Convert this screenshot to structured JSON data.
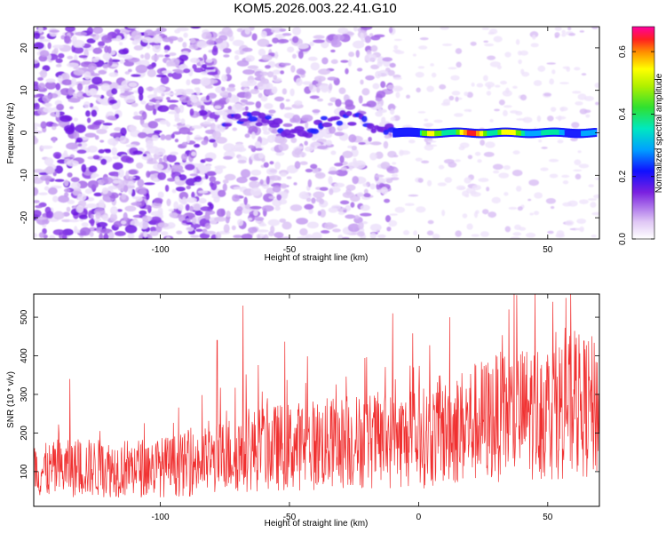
{
  "title": "KOM5.2026.003.22.41.G10",
  "colors": {
    "line": "#f03030",
    "frame": "#000000"
  },
  "chart_data": [
    {
      "type": "heatmap",
      "title": "KOM5.2026.003.22.41.G10",
      "xlabel": "Height of straight line (km)",
      "ylabel": "Frequency (Hz)",
      "xlim": [
        -149,
        70
      ],
      "ylim": [
        -25,
        25
      ],
      "xticks": [
        -100,
        -50,
        0,
        50
      ],
      "xtick_labels": [
        "-100",
        "-50",
        "0",
        "50"
      ],
      "yticks": [
        20,
        10,
        0,
        -10,
        -20
      ],
      "ytick_labels": [
        "20",
        "10",
        "0",
        "-10",
        "-20"
      ],
      "colorbar": {
        "label": "Normalized spectral amplitude",
        "range": [
          0.0,
          0.68
        ],
        "ticks": [
          0.0,
          0.2,
          0.4,
          0.6
        ],
        "tick_labels": [
          "0.0",
          "0.2",
          "0.4",
          "0.6"
        ]
      },
      "features": [
        {
          "name": "broadband-noise",
          "x_range": [
            -149,
            -78
          ],
          "freq_range": [
            -25,
            25
          ],
          "amplitude": 0.15
        },
        {
          "name": "scattered-noise",
          "x_range": [
            -78,
            -10
          ],
          "freq_range": [
            -25,
            25
          ],
          "amplitude": 0.1
        },
        {
          "name": "carrier-line",
          "x_range": [
            -10,
            68
          ],
          "freq": 0,
          "amplitude_peak": 0.68,
          "peak_x": 22
        }
      ]
    },
    {
      "type": "line",
      "xlabel": "Height of straight line (km)",
      "ylabel": "SNR (10 * v/v)",
      "xlim": [
        -149,
        70
      ],
      "ylim": [
        10,
        560
      ],
      "xticks": [
        -100,
        -50,
        0,
        50
      ],
      "xtick_labels": [
        "-100",
        "-50",
        "0",
        "50"
      ],
      "yticks": [
        100,
        200,
        300,
        400,
        500
      ],
      "ytick_labels": [
        "100",
        "200",
        "300",
        "400",
        "500"
      ],
      "series": [
        {
          "name": "SNR",
          "x": [
            -149,
            -140,
            -130,
            -120,
            -110,
            -100,
            -90,
            -80,
            -70,
            -60,
            -50,
            -40,
            -30,
            -20,
            -10,
            0,
            10,
            20,
            30,
            40,
            50,
            60,
            70
          ],
          "mean": [
            100,
            105,
            110,
            108,
            110,
            112,
            118,
            130,
            150,
            160,
            165,
            170,
            175,
            180,
            182,
            185,
            200,
            225,
            240,
            250,
            260,
            270,
            265
          ],
          "peaks": [
            [
              -68,
              530
            ],
            [
              -10,
              510
            ],
            [
              57,
              550
            ],
            [
              52,
              540
            ],
            [
              35,
              520
            ],
            [
              12,
              500
            ],
            [
              -78,
              440
            ],
            [
              -135,
              340
            ]
          ]
        }
      ]
    }
  ]
}
